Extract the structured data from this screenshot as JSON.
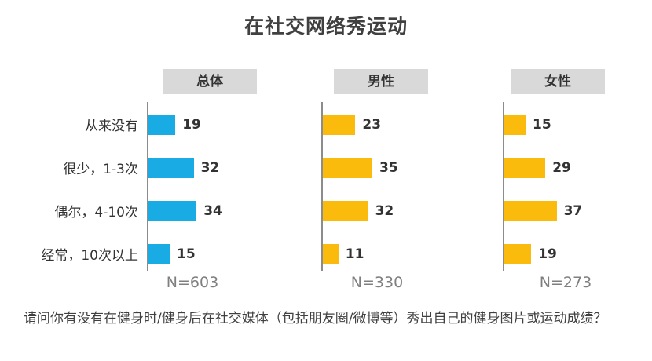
{
  "chart_data": {
    "type": "bar",
    "orientation": "horizontal",
    "title": "在社交网络秀运动",
    "categories": [
      "从来没有",
      "很少，1-3次",
      "偶尔，4-10次",
      "经常，10次以上"
    ],
    "series": [
      {
        "name": "总体",
        "sample": "N=603",
        "color": "#19ace4",
        "values": [
          19,
          32,
          34,
          15
        ]
      },
      {
        "name": "男性",
        "sample": "N=330",
        "color": "#fbbb0d",
        "values": [
          23,
          35,
          32,
          11
        ]
      },
      {
        "name": "女性",
        "sample": "N=273",
        "color": "#fbbb0d",
        "values": [
          15,
          29,
          37,
          19
        ]
      }
    ],
    "xlim": [
      0,
      100
    ],
    "unit": "%"
  },
  "question": "请问你有没有在健身时/健身后在社交媒体（包括朋友圈/微博等）秀出自己的健身图片或运动成绩？"
}
